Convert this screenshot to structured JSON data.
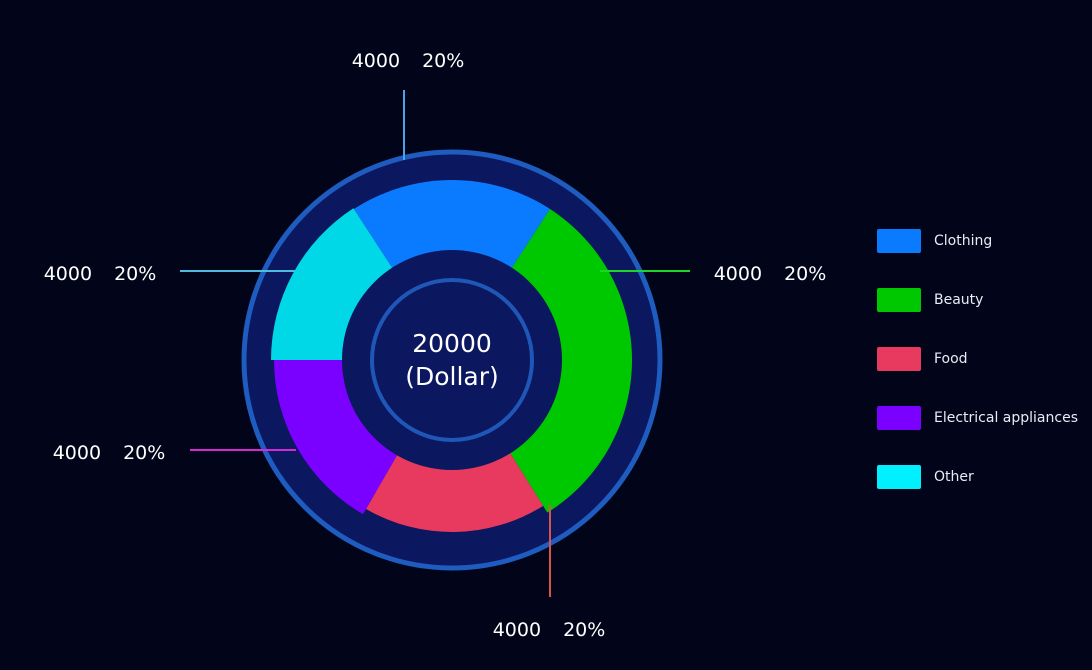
{
  "chart_data": {
    "type": "pie",
    "center_label": [
      "20000",
      "(Dollar)"
    ],
    "legend_position": "right",
    "series": [
      {
        "name": "Clothing",
        "value": 4000,
        "percent": "20%",
        "color": "#0a7bff",
        "value_label": "4000",
        "percent_label": "20%"
      },
      {
        "name": "Beauty",
        "value": 4000,
        "percent": "20%",
        "color": "#00c800",
        "value_label": "4000",
        "percent_label": "20%"
      },
      {
        "name": "Food",
        "value": 4000,
        "percent": "20%",
        "color": "#e83a5e",
        "value_label": "4000",
        "percent_label": "20%"
      },
      {
        "name": "Electrical appliances",
        "value": 4000,
        "percent": "20%",
        "color": "#7a00ff",
        "value_label": "4000",
        "percent_label": "20%"
      },
      {
        "name": "Other",
        "value": 4000,
        "percent": "20%",
        "color": "#00d8e8",
        "value_label": "4000",
        "percent_label": "20%"
      }
    ],
    "colors": {
      "background": "#02041a",
      "ring_fill": "#0b175e",
      "ring_border": "#1e5cc0",
      "inner_ring": "#1f57b8",
      "legend_other": "#00f0ff",
      "line_clothing": "#4aa3e6",
      "line_beauty": "#1bd52c",
      "line_food": "#d8544a",
      "line_electrical": "#d42ad6",
      "line_other": "#4cbde0"
    }
  }
}
